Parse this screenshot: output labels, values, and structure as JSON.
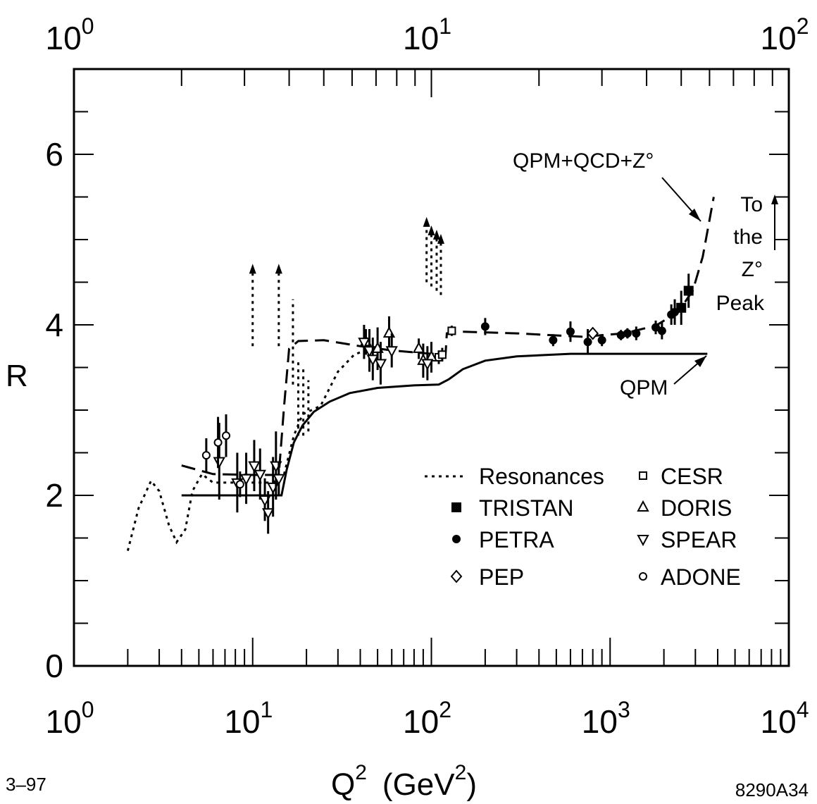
{
  "chart_data": {
    "type": "scatter",
    "x_scale": "log",
    "xlabel": "Q",
    "xlabel_sup": "2",
    "xlabel_unit": "(GeV",
    "xlabel_unit_sup": "2",
    "xlabel_unit_close": ")",
    "ylabel": "R",
    "xlim": [
      1,
      10000
    ],
    "ylim": [
      0,
      7
    ],
    "x_ticks": [
      {
        "base": "10",
        "exp": "0",
        "value": 1
      },
      {
        "base": "10",
        "exp": "1",
        "value": 10
      },
      {
        "base": "10",
        "exp": "2",
        "value": 100
      },
      {
        "base": "10",
        "exp": "3",
        "value": 1000
      },
      {
        "base": "10",
        "exp": "4",
        "value": 10000
      }
    ],
    "top_axis_ticks": [
      {
        "base": "10",
        "exp": "0",
        "value": 1
      },
      {
        "base": "10",
        "exp": "1",
        "value": 10
      },
      {
        "base": "10",
        "exp": "2",
        "value": 100
      }
    ],
    "y_ticks": [
      {
        "label": "0",
        "value": 0
      },
      {
        "label": "2",
        "value": 2
      },
      {
        "label": "4",
        "value": 4
      },
      {
        "label": "6",
        "value": 6
      }
    ],
    "grid": false,
    "legend_placement": "bottom-right",
    "legend": [
      {
        "label": "Resonances",
        "marker": "dotted-line"
      },
      {
        "label": "TRISTAN",
        "marker": "filled-square"
      },
      {
        "label": "PETRA",
        "marker": "filled-circle"
      },
      {
        "label": "PEP",
        "marker": "open-diamond"
      },
      {
        "label": "CESR",
        "marker": "open-square"
      },
      {
        "label": "DORIS",
        "marker": "open-triangle-up"
      },
      {
        "label": "SPEAR",
        "marker": "open-triangle-down"
      },
      {
        "label": "ADONE",
        "marker": "open-circle"
      }
    ],
    "annotations": {
      "qcd_curve": "QPM+QCD+Z°",
      "qpm_curve": "QPM",
      "z_peak_lines": [
        "To",
        "the",
        "Z°",
        "Peak"
      ]
    },
    "curves": {
      "qpm_solid": [
        [
          4,
          2.0
        ],
        [
          14.5,
          2.0
        ],
        [
          15.5,
          2.3
        ],
        [
          17,
          2.62
        ],
        [
          19,
          2.82
        ],
        [
          22,
          2.98
        ],
        [
          27,
          3.1
        ],
        [
          35,
          3.2
        ],
        [
          50,
          3.26
        ],
        [
          80,
          3.29
        ],
        [
          110,
          3.3
        ],
        [
          125,
          3.36
        ],
        [
          150,
          3.48
        ],
        [
          200,
          3.58
        ],
        [
          300,
          3.63
        ],
        [
          600,
          3.66
        ],
        [
          3500,
          3.66
        ]
      ],
      "qcd_dashed": [
        [
          4,
          2.35
        ],
        [
          6,
          2.25
        ],
        [
          10,
          2.24
        ],
        [
          14,
          2.24
        ],
        [
          15,
          3.05
        ],
        [
          16,
          3.72
        ],
        [
          18,
          3.81
        ],
        [
          25,
          3.82
        ],
        [
          40,
          3.75
        ],
        [
          60,
          3.7
        ],
        [
          100,
          3.66
        ],
        [
          120,
          3.65
        ],
        [
          122,
          3.9
        ],
        [
          150,
          3.92
        ],
        [
          300,
          3.9
        ],
        [
          700,
          3.86
        ],
        [
          1200,
          3.9
        ],
        [
          1800,
          3.99
        ],
        [
          2400,
          4.15
        ],
        [
          2900,
          4.4
        ],
        [
          3300,
          4.8
        ],
        [
          3800,
          5.5
        ]
      ],
      "resonances_dotted": [
        [
          2,
          1.35
        ],
        [
          2.3,
          1.85
        ],
        [
          2.7,
          2.17
        ],
        [
          3.0,
          2.05
        ],
        [
          3.4,
          1.65
        ],
        [
          3.75,
          1.45
        ],
        [
          4.2,
          1.6
        ],
        [
          4.6,
          2.05
        ],
        [
          5.2,
          2.25
        ],
        [
          6,
          2.15
        ],
        [
          7.5,
          2.15
        ],
        [
          9,
          2.15
        ],
        [
          10.5,
          2.15
        ],
        [
          13,
          2.15
        ],
        [
          15,
          2.25
        ],
        [
          17,
          2.7
        ],
        [
          19,
          2.95
        ],
        [
          24,
          3.05
        ],
        [
          30,
          3.45
        ],
        [
          37,
          3.65
        ],
        [
          45,
          3.72
        ]
      ]
    },
    "resonance_spikes": [
      {
        "x": 10.0,
        "y_from": 3.75,
        "y_to": 4.6,
        "arrow": true
      },
      {
        "x": 14.0,
        "y_from": 3.75,
        "y_to": 4.6,
        "arrow": true
      },
      {
        "x": 16.8,
        "y_from": 3.3,
        "y_to": 4.3,
        "arrow": false
      },
      {
        "x": 18.0,
        "y_from": 2.7,
        "y_to": 3.6,
        "arrow": false
      },
      {
        "x": 19.2,
        "y_from": 2.7,
        "y_to": 3.5,
        "arrow": false
      },
      {
        "x": 20.5,
        "y_from": 2.75,
        "y_to": 3.35,
        "arrow": false
      },
      {
        "x": 94,
        "y_from": 4.5,
        "y_to": 5.15,
        "arrow": true
      },
      {
        "x": 100,
        "y_from": 4.45,
        "y_to": 5.05,
        "arrow": true
      },
      {
        "x": 107,
        "y_from": 4.4,
        "y_to": 5.0,
        "arrow": true
      },
      {
        "x": 113,
        "y_from": 4.35,
        "y_to": 4.95,
        "arrow": true
      }
    ],
    "series": [
      {
        "name": "TRISTAN",
        "marker": "filled-square",
        "points": [
          [
            2500,
            4.2,
            0.2
          ],
          [
            2750,
            4.4,
            0.2
          ]
        ]
      },
      {
        "name": "PETRA",
        "marker": "filled-circle",
        "points": [
          [
            200,
            3.98,
            0.1
          ],
          [
            480,
            3.82,
            0.07
          ],
          [
            600,
            3.92,
            0.12
          ],
          [
            750,
            3.8,
            0.15
          ],
          [
            900,
            3.82,
            0.07
          ],
          [
            1150,
            3.88,
            0.06
          ],
          [
            1250,
            3.9,
            0.06
          ],
          [
            1400,
            3.9,
            0.08
          ],
          [
            1800,
            3.97,
            0.08
          ],
          [
            1950,
            3.93,
            0.1
          ],
          [
            2200,
            4.12,
            0.12
          ],
          [
            2300,
            4.15,
            0.15
          ]
        ]
      },
      {
        "name": "PEP",
        "marker": "open-diamond",
        "points": [
          [
            800,
            3.9,
            0.05
          ]
        ]
      },
      {
        "name": "CESR",
        "marker": "open-square",
        "points": [
          [
            110,
            3.62,
            0.08
          ],
          [
            115,
            3.65,
            0.08
          ],
          [
            130,
            3.93,
            0.06
          ]
        ]
      },
      {
        "name": "DORIS",
        "marker": "open-triangle-up",
        "points": [
          [
            43,
            3.8,
            0.15
          ],
          [
            50,
            3.72,
            0.25
          ],
          [
            58,
            3.9,
            0.2
          ],
          [
            85,
            3.72,
            0.12
          ],
          [
            90,
            3.58,
            0.2
          ],
          [
            100,
            3.62,
            0.18
          ]
        ]
      },
      {
        "name": "SPEAR",
        "marker": "open-triangle-down",
        "points": [
          [
            6.5,
            2.4,
            0.45
          ],
          [
            8.2,
            2.15,
            0.35
          ],
          [
            9.2,
            2.2,
            0.3
          ],
          [
            10.2,
            2.35,
            0.3
          ],
          [
            11,
            2.25,
            0.3
          ],
          [
            11.7,
            1.95,
            0.25
          ],
          [
            12.2,
            1.8,
            0.25
          ],
          [
            13,
            2.1,
            0.35
          ],
          [
            13.5,
            2.35,
            0.4
          ],
          [
            14,
            2.2,
            0.2
          ],
          [
            42,
            3.8,
            0.2
          ],
          [
            45,
            3.7,
            0.25
          ],
          [
            47,
            3.6,
            0.25
          ],
          [
            52,
            3.55,
            0.25
          ],
          [
            60,
            3.7,
            0.2
          ],
          [
            95,
            3.55,
            0.2
          ]
        ]
      },
      {
        "name": "ADONE",
        "marker": "open-circle",
        "points": [
          [
            5.5,
            2.47,
            0.2
          ],
          [
            6.4,
            2.62,
            0.3
          ],
          [
            7.1,
            2.7,
            0.25
          ],
          [
            8.5,
            2.13,
            0.15
          ]
        ]
      }
    ]
  },
  "footer": {
    "left_code": "3–97",
    "right_code": "8290A34"
  }
}
